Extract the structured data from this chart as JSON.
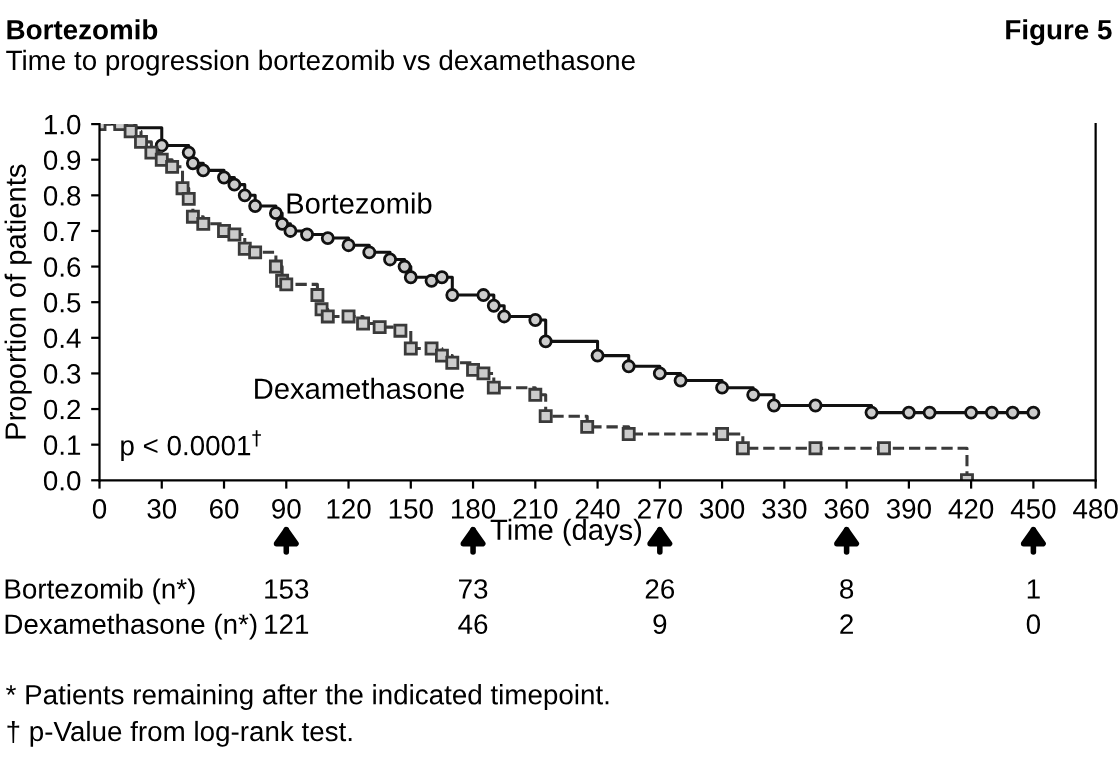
{
  "chart_data": {
    "type": "step",
    "title": "Bortezomib",
    "subtitle": "Time to progression bortezomib vs dexamethasone",
    "xlabel": "Time (days)",
    "ylabel": "Proportion of patients",
    "series": [
      {
        "name": "Bortezomib",
        "color": "#111111",
        "marker": "circle",
        "line_style": "solid",
        "x": [
          0,
          10,
          15,
          30,
          43,
          45,
          50,
          60,
          65,
          70,
          75,
          85,
          88,
          92,
          100,
          110,
          120,
          130,
          140,
          147,
          150,
          160,
          165,
          170,
          185,
          190,
          195,
          210,
          215,
          240,
          255,
          270,
          280,
          300,
          315,
          325,
          345,
          372,
          390,
          400,
          420,
          430,
          440,
          450
        ],
        "values": [
          1.0,
          1.0,
          0.99,
          0.94,
          0.92,
          0.89,
          0.87,
          0.85,
          0.83,
          0.8,
          0.77,
          0.75,
          0.72,
          0.7,
          0.69,
          0.68,
          0.66,
          0.64,
          0.62,
          0.6,
          0.57,
          0.56,
          0.57,
          0.52,
          0.52,
          0.49,
          0.46,
          0.45,
          0.39,
          0.35,
          0.32,
          0.3,
          0.28,
          0.26,
          0.24,
          0.21,
          0.21,
          0.19,
          0.19,
          0.19,
          0.19,
          0.19,
          0.19,
          0.19
        ]
      },
      {
        "name": "Dexamethasone",
        "color": "#3a3a3a",
        "marker": "square",
        "line_style": "dashed",
        "x": [
          0,
          10,
          15,
          20,
          25,
          30,
          35,
          40,
          43,
          45,
          50,
          60,
          65,
          70,
          75,
          85,
          88,
          90,
          105,
          107,
          110,
          120,
          127,
          135,
          145,
          150,
          160,
          165,
          170,
          180,
          185,
          190,
          210,
          215,
          235,
          255,
          300,
          310,
          345,
          378,
          418
        ],
        "values": [
          1.0,
          1.0,
          0.98,
          0.95,
          0.92,
          0.9,
          0.88,
          0.82,
          0.79,
          0.74,
          0.72,
          0.7,
          0.69,
          0.65,
          0.64,
          0.6,
          0.56,
          0.55,
          0.52,
          0.48,
          0.46,
          0.46,
          0.44,
          0.43,
          0.42,
          0.37,
          0.37,
          0.35,
          0.33,
          0.31,
          0.3,
          0.26,
          0.24,
          0.18,
          0.15,
          0.13,
          0.13,
          0.09,
          0.09,
          0.09,
          0.0
        ]
      }
    ],
    "xlim": [
      0,
      480
    ],
    "xticks": [
      0,
      30,
      60,
      90,
      120,
      150,
      180,
      210,
      240,
      270,
      300,
      330,
      360,
      390,
      420,
      450,
      480
    ],
    "ylim": [
      0.0,
      1.0
    ],
    "yticks": [
      {
        "value": 0,
        "label": "0.0"
      },
      0.1,
      0.2,
      0.3,
      0.4,
      0.5,
      0.6,
      0.7,
      0.8,
      0.9,
      {
        "value": 1,
        "label": "1.0"
      }
    ],
    "grid": false,
    "legend": false,
    "annotations": [
      "Figure 5",
      "p < 0.0001$^{†}$",
      "Bortezomib (n*)",
      "153",
      "73",
      "26",
      "8",
      "1",
      "Dexamethasone (n*)",
      "121",
      "46",
      "9",
      "2",
      "0",
      "* Patients remaining after the indicated timepoint.",
      "† p-Value from log-rank test."
    ]
  }
}
